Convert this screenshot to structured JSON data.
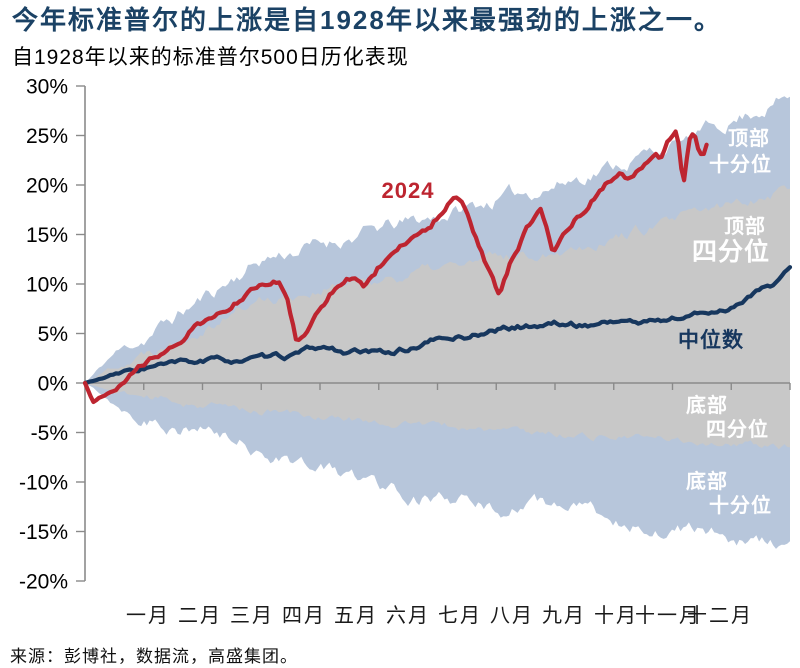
{
  "header": {
    "title": "今年标准普尔的上涨是自1928年以来最强劲的上涨之一。",
    "subtitle": "自1928年以来的标准普尔500日历化表现"
  },
  "source_line": "来源：彭博社，数据流，高盛集团。",
  "colors": {
    "title": "#1b4265",
    "red": "#bd2530",
    "navy": "#17375e",
    "decile_band": "#b7c6db",
    "quartile_band": "#c8c8c8",
    "axis": "#8a8a8a",
    "band_label": "#ffffff",
    "tick_label": "#000000",
    "month_label": "#1a1a1a"
  },
  "chart_data": {
    "type": "area",
    "title": "自1928年以来的标准普尔500日历化表现",
    "subtitle_meaning": "S&P 500 calendarized YTD performance percentile fan since 1928 versus 2024",
    "ylim": [
      -20,
      30
    ],
    "ytick_values": [
      30,
      25,
      20,
      15,
      10,
      5,
      0,
      -5,
      -10,
      -15,
      -20
    ],
    "ytick_suffix": "%",
    "x_domain_months": [
      0,
      12
    ],
    "month_labels": [
      "一月",
      "二月",
      "三月",
      "四月",
      "五月",
      "六月",
      "七月",
      "八月",
      "九月",
      "十月",
      "十一月",
      "十二月"
    ],
    "grid": false,
    "legend_position": "labels-on-chart",
    "series": [
      {
        "name": "顶部十分位",
        "role": "band_upper_outer",
        "band": "decile",
        "x": [
          0,
          0.5,
          1,
          2,
          3,
          4,
          5,
          6,
          7,
          8,
          9,
          10,
          11,
          12
        ],
        "values": [
          0,
          3.0,
          4.5,
          8.5,
          12.5,
          14.0,
          15.5,
          16.8,
          18.5,
          20.0,
          22.0,
          24.0,
          26.5,
          29.0
        ]
      },
      {
        "name": "顶部四分位",
        "role": "band_upper_inner",
        "band": "quartile",
        "x": [
          0,
          0.5,
          1,
          2,
          3,
          4,
          5,
          6,
          7,
          8,
          9,
          10,
          11,
          12
        ],
        "values": [
          0,
          1.8,
          3.0,
          6.0,
          8.4,
          9.5,
          10.5,
          11.5,
          12.5,
          13.5,
          14.8,
          16.2,
          18.0,
          20.0
        ]
      },
      {
        "name": "中位数",
        "role": "median",
        "x": [
          0,
          0.5,
          1,
          1.5,
          2,
          2.5,
          3,
          3.5,
          4,
          4.5,
          5,
          5.5,
          6,
          6.5,
          7,
          7.5,
          8,
          8.5,
          9,
          9.5,
          10,
          10.5,
          11,
          11.4,
          11.7,
          12
        ],
        "values": [
          0,
          0.8,
          1.5,
          1.9,
          2.2,
          2.3,
          2.4,
          2.7,
          3.6,
          3.1,
          3.0,
          3.4,
          4.4,
          4.7,
          5.4,
          5.7,
          6.0,
          5.8,
          6.3,
          6.1,
          6.5,
          7.0,
          7.6,
          9.3,
          9.8,
          11.3
        ]
      },
      {
        "name": "底部四分位",
        "role": "band_lower_inner",
        "band": "quartile",
        "x": [
          0,
          0.5,
          1,
          2,
          3,
          4,
          5,
          6,
          7,
          8,
          9,
          10,
          11,
          12
        ],
        "values": [
          0,
          -0.9,
          -1.4,
          -2.2,
          -2.8,
          -3.4,
          -3.9,
          -4.3,
          -4.8,
          -5.1,
          -5.4,
          -5.8,
          -6.1,
          -6.6
        ]
      },
      {
        "name": "底部十分位",
        "role": "band_lower_outer",
        "band": "decile",
        "x": [
          0,
          0.5,
          1,
          2,
          3,
          4,
          5,
          6,
          7,
          8,
          9,
          10,
          11,
          12
        ],
        "values": [
          0,
          -2.0,
          -3.3,
          -5.0,
          -6.8,
          -8.6,
          -10.2,
          -11.8,
          -12.8,
          -12.2,
          -13.8,
          -14.6,
          -15.6,
          -16.6
        ]
      },
      {
        "name": "2024",
        "role": "highlight_line",
        "x": [
          0,
          0.14,
          0.4,
          0.7,
          0.95,
          1.2,
          1.5,
          1.8,
          2.1,
          2.4,
          2.7,
          2.95,
          3.15,
          3.3,
          3.45,
          3.6,
          3.8,
          4.0,
          4.2,
          4.4,
          4.6,
          4.75,
          4.95,
          5.2,
          5.45,
          5.7,
          5.9,
          6.1,
          6.3,
          6.5,
          6.7,
          6.9,
          7.05,
          7.25,
          7.45,
          7.6,
          7.75,
          7.85,
          7.97,
          8.15,
          8.35,
          8.55,
          8.75,
          8.95,
          9.1,
          9.25,
          9.4,
          9.55,
          9.7,
          9.8,
          9.9,
          10.0,
          10.08,
          10.18,
          10.28,
          10.36,
          10.45,
          10.52,
          10.58
        ],
        "values": [
          0,
          -1.9,
          -0.9,
          0.3,
          1.6,
          2.8,
          4.0,
          5.3,
          6.3,
          7.3,
          8.8,
          9.6,
          9.9,
          10.2,
          8.8,
          4.6,
          5.8,
          7.3,
          9.2,
          10.6,
          11.0,
          10.2,
          11.6,
          13.2,
          14.3,
          15.2,
          16.2,
          17.5,
          18.8,
          17.2,
          14.0,
          11.0,
          8.6,
          12.3,
          14.8,
          16.2,
          17.4,
          16.0,
          13.4,
          15.3,
          16.6,
          17.2,
          19.4,
          20.6,
          21.2,
          20.6,
          21.6,
          22.6,
          23.5,
          23.0,
          24.3,
          25.3,
          25.6,
          19.8,
          24.6,
          25.2,
          23.4,
          23.2,
          24.2
        ]
      }
    ],
    "labels": {
      "line_2024": "2024",
      "top_decile": [
        "顶部",
        "十分位"
      ],
      "top_quartile": [
        "顶部",
        "四分位"
      ],
      "median": "中位数",
      "bottom_quartile": [
        "底部",
        "四分位"
      ],
      "bottom_decile": [
        "底部",
        "十分位"
      ]
    }
  }
}
